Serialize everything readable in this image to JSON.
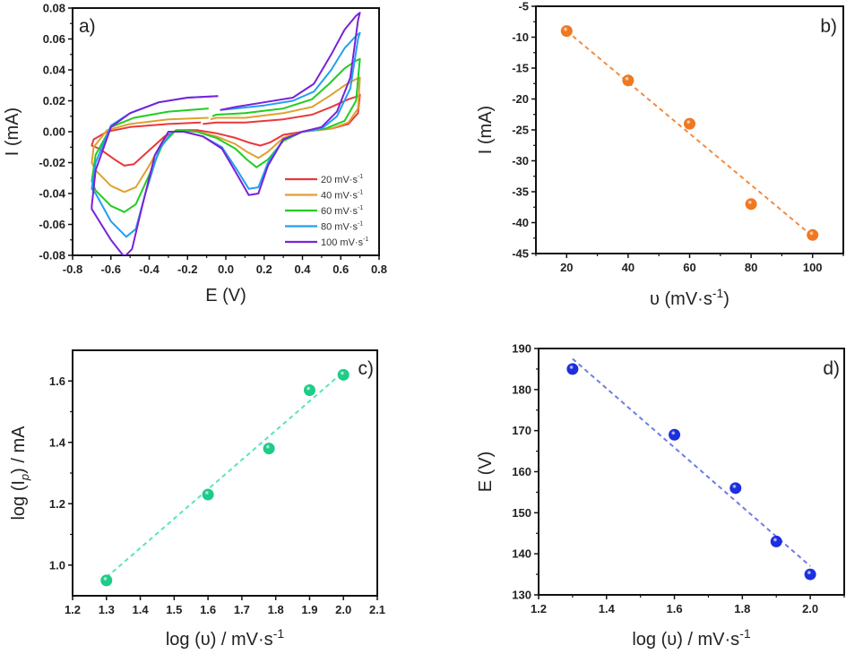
{
  "figure": {
    "panels": [
      "a)",
      "b)",
      "c)",
      "d)"
    ]
  },
  "chart_data": [
    {
      "id": "a",
      "type": "line",
      "panel_label": "a)",
      "title": "",
      "xlabel": "E (V)",
      "ylabel": "I (mA)",
      "xlim": [
        -0.8,
        0.8
      ],
      "ylim": [
        -0.08,
        0.08
      ],
      "xticks": [
        -0.8,
        -0.6,
        -0.4,
        -0.2,
        0.0,
        0.2,
        0.4,
        0.6,
        0.8
      ],
      "xtick_labels": [
        "-0.8",
        "-0.6",
        "-0.4",
        "-0.2",
        "0.0",
        "0.2",
        "0.4",
        "0.6",
        "0.8"
      ],
      "yticks": [
        -0.08,
        -0.06,
        -0.04,
        -0.02,
        0.0,
        0.02,
        0.04,
        0.06,
        0.08
      ],
      "ytick_labels": [
        "-0.08",
        "-0.06",
        "-0.04",
        "-0.02",
        "0.00",
        "0.02",
        "0.04",
        "0.06",
        "0.08"
      ],
      "grid": false,
      "legend_position": "bottom-right",
      "series": [
        {
          "name": "20 mV·s",
          "name_sup": "-1",
          "color": "#e8383d",
          "x": [
            -0.13,
            -0.3,
            -0.5,
            -0.62,
            -0.69,
            -0.7,
            -0.66,
            -0.58,
            -0.53,
            -0.48,
            -0.4,
            -0.32,
            -0.25,
            -0.15,
            -0.05,
            0.05,
            0.12,
            0.18,
            0.23,
            0.3,
            0.4,
            0.55,
            0.64,
            0.69,
            0.7,
            0.69,
            0.64,
            0.55,
            0.45,
            0.3,
            0.1,
            -0.05,
            -0.12
          ],
          "y": [
            0.006,
            0.005,
            0.003,
            0.0,
            -0.005,
            -0.009,
            -0.011,
            -0.018,
            -0.022,
            -0.021,
            -0.012,
            -0.003,
            0.001,
            0.001,
            -0.001,
            -0.004,
            -0.007,
            -0.009,
            -0.007,
            -0.002,
            0.0,
            0.002,
            0.005,
            0.012,
            0.024,
            0.023,
            0.021,
            0.016,
            0.011,
            0.008,
            0.006,
            0.006,
            0.005
          ]
        },
        {
          "name": "40 mV·s",
          "name_sup": "-1",
          "color": "#e0a030",
          "x": [
            -0.09,
            -0.3,
            -0.5,
            -0.62,
            -0.69,
            -0.7,
            -0.68,
            -0.6,
            -0.53,
            -0.47,
            -0.4,
            -0.33,
            -0.26,
            -0.15,
            -0.05,
            0.05,
            0.11,
            0.17,
            0.22,
            0.3,
            0.4,
            0.55,
            0.64,
            0.69,
            0.7,
            0.68,
            0.62,
            0.54,
            0.45,
            0.3,
            0.1,
            -0.05,
            -0.08
          ],
          "y": [
            0.009,
            0.008,
            0.005,
            0.001,
            -0.01,
            -0.02,
            -0.025,
            -0.035,
            -0.039,
            -0.036,
            -0.022,
            -0.006,
            0.001,
            0.0,
            -0.003,
            -0.008,
            -0.013,
            -0.017,
            -0.013,
            -0.004,
            0.0,
            0.002,
            0.006,
            0.015,
            0.035,
            0.034,
            0.03,
            0.023,
            0.016,
            0.012,
            0.009,
            0.009,
            0.008
          ]
        },
        {
          "name": "60 mV·s",
          "name_sup": "-1",
          "color": "#22cc22",
          "x": [
            -0.09,
            -0.3,
            -0.48,
            -0.6,
            -0.68,
            -0.7,
            -0.68,
            -0.6,
            -0.53,
            -0.47,
            -0.4,
            -0.33,
            -0.26,
            -0.15,
            -0.05,
            0.05,
            0.11,
            0.16,
            0.22,
            0.3,
            0.4,
            0.52,
            0.62,
            0.68,
            0.7,
            0.68,
            0.62,
            0.54,
            0.45,
            0.3,
            0.1,
            -0.05,
            -0.07
          ],
          "y": [
            0.015,
            0.013,
            0.009,
            0.003,
            -0.015,
            -0.032,
            -0.038,
            -0.048,
            -0.052,
            -0.047,
            -0.028,
            -0.008,
            0.001,
            0.0,
            -0.004,
            -0.011,
            -0.018,
            -0.023,
            -0.018,
            -0.006,
            0.0,
            0.002,
            0.007,
            0.02,
            0.047,
            0.046,
            0.041,
            0.031,
            0.021,
            0.015,
            0.012,
            0.011,
            0.01
          ]
        },
        {
          "name": "80 mV·s",
          "name_sup": "-1",
          "color": "#22a0f0",
          "x": [
            -0.04,
            -0.2,
            -0.35,
            -0.5,
            -0.6,
            -0.68,
            -0.7,
            -0.68,
            -0.6,
            -0.52,
            -0.47,
            -0.42,
            -0.35,
            -0.28,
            -0.22,
            -0.12,
            -0.02,
            0.06,
            0.12,
            0.17,
            0.22,
            0.3,
            0.4,
            0.5,
            0.58,
            0.65,
            0.69,
            0.7,
            0.68,
            0.62,
            0.55,
            0.46,
            0.35,
            0.2,
            0.05,
            -0.03
          ],
          "y": [
            0.023,
            0.022,
            0.019,
            0.012,
            0.004,
            -0.02,
            -0.037,
            -0.04,
            -0.058,
            -0.068,
            -0.063,
            -0.04,
            -0.012,
            0.0,
            0.0,
            -0.003,
            -0.01,
            -0.025,
            -0.037,
            -0.036,
            -0.02,
            -0.005,
            0.0,
            0.002,
            0.01,
            0.028,
            0.06,
            0.064,
            0.062,
            0.054,
            0.04,
            0.026,
            0.02,
            0.017,
            0.015,
            0.014
          ]
        },
        {
          "name": "100 mV·s",
          "name_sup": "-1",
          "color": "#7a22d8",
          "x": [
            -0.04,
            -0.2,
            -0.35,
            -0.5,
            -0.6,
            -0.68,
            -0.7,
            -0.7,
            -0.6,
            -0.53,
            -0.49,
            -0.44,
            -0.37,
            -0.3,
            -0.22,
            -0.12,
            -0.02,
            0.06,
            0.12,
            0.17,
            0.22,
            0.3,
            0.4,
            0.5,
            0.58,
            0.65,
            0.69,
            0.7,
            0.68,
            0.62,
            0.55,
            0.46,
            0.35,
            0.2,
            0.05,
            -0.03
          ],
          "y": [
            0.023,
            0.022,
            0.019,
            0.012,
            0.003,
            -0.025,
            -0.048,
            -0.05,
            -0.07,
            -0.081,
            -0.076,
            -0.05,
            -0.015,
            0.0,
            0.0,
            -0.003,
            -0.011,
            -0.028,
            -0.041,
            -0.04,
            -0.022,
            -0.005,
            0.0,
            0.003,
            0.013,
            0.035,
            0.072,
            0.077,
            0.075,
            0.066,
            0.05,
            0.031,
            0.022,
            0.019,
            0.016,
            0.014
          ]
        }
      ]
    },
    {
      "id": "b",
      "type": "scatter",
      "panel_label": "b)",
      "title": "",
      "xlabel": "υ (mV·s",
      "xlabel_sup": "-1",
      "xlabel_tail": ")",
      "ylabel": "I (mA)",
      "xlim": [
        10,
        110
      ],
      "ylim": [
        -45,
        -5
      ],
      "xticks": [
        20,
        40,
        60,
        80,
        100
      ],
      "xtick_labels": [
        "20",
        "40",
        "60",
        "80",
        "100"
      ],
      "xminor": [
        10,
        30,
        50,
        70,
        90,
        110
      ],
      "yticks": [
        -45,
        -40,
        -35,
        -30,
        -25,
        -20,
        -15,
        -10,
        -5
      ],
      "ytick_labels": [
        "-45",
        "-40",
        "-35",
        "-30",
        "-25",
        "-20",
        "-15",
        "-10",
        "-5"
      ],
      "grid": false,
      "color": "#f07820",
      "x": [
        20,
        40,
        60,
        80,
        100
      ],
      "y": [
        -9,
        -17,
        -24,
        -37,
        -42
      ],
      "fit_line": {
        "x": [
          20,
          100
        ],
        "y": [
          -9.0,
          -42.2
        ],
        "style": "dashed"
      }
    },
    {
      "id": "c",
      "type": "scatter",
      "panel_label": "c)",
      "title": "",
      "xlabel": "log (υ) / mV·s",
      "xlabel_sup": "-1",
      "ylabel": "log (I",
      "ylabel_sub": "p",
      "ylabel_tail": ") / mA",
      "xlim": [
        1.2,
        2.1
      ],
      "ylim": [
        0.9,
        1.7
      ],
      "xticks": [
        1.2,
        1.3,
        1.4,
        1.5,
        1.6,
        1.7,
        1.8,
        1.9,
        2.0,
        2.1
      ],
      "xtick_labels": [
        "1.2",
        "1.3",
        "1.4",
        "1.5",
        "1.6",
        "1.7",
        "1.8",
        "1.9",
        "2.0",
        "2.1"
      ],
      "yticks": [
        1.0,
        1.2,
        1.4,
        1.6
      ],
      "ytick_labels": [
        "1.0",
        "1.2",
        "1.4",
        "1.6"
      ],
      "grid": false,
      "color": "#1ccc88",
      "line_color": "#3ee0b0",
      "x": [
        1.3,
        1.6,
        1.78,
        1.9,
        2.0
      ],
      "y": [
        0.95,
        1.23,
        1.38,
        1.57,
        1.62
      ],
      "fit_line": {
        "x": [
          1.3,
          2.0
        ],
        "y": [
          0.96,
          1.63
        ],
        "style": "dashed"
      }
    },
    {
      "id": "d",
      "type": "scatter",
      "panel_label": "d)",
      "title": "",
      "xlabel": "log (υ) / mV·s",
      "xlabel_sup": "-1",
      "ylabel": "E (V)",
      "xlim": [
        1.2,
        2.1
      ],
      "ylim": [
        130,
        190
      ],
      "xticks": [
        1.2,
        1.4,
        1.6,
        1.8,
        2.0
      ],
      "xtick_labels": [
        "1.2",
        "1.4",
        "1.6",
        "1.8",
        "2.0"
      ],
      "xminor": [
        1.3,
        1.5,
        1.7,
        1.9,
        2.1
      ],
      "yticks": [
        130,
        140,
        150,
        160,
        170,
        180,
        190
      ],
      "ytick_labels": [
        "130",
        "140",
        "150",
        "160",
        "170",
        "180",
        "190"
      ],
      "grid": false,
      "color": "#1c2ee0",
      "line_color": "#5566e0",
      "x": [
        1.3,
        1.6,
        1.78,
        1.9,
        2.0
      ],
      "y": [
        185,
        169,
        156,
        143,
        135
      ],
      "fit_line": {
        "x": [
          1.3,
          2.0
        ],
        "y": [
          187.5,
          137.0
        ],
        "style": "dashed"
      }
    }
  ]
}
